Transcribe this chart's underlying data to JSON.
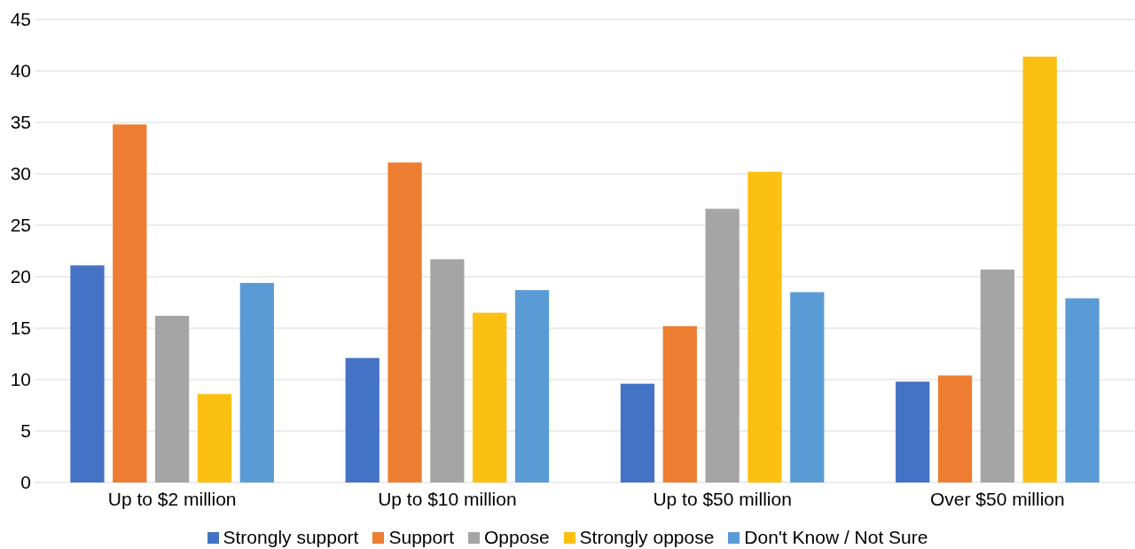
{
  "chart_data": {
    "type": "bar",
    "categories": [
      "Up to $2 million",
      "Up to $10 million",
      "Up to $50 million",
      "Over $50 million"
    ],
    "series": [
      {
        "name": "Strongly support",
        "color": "#4472c4",
        "values": [
          21.1,
          12.1,
          9.6,
          9.8
        ]
      },
      {
        "name": "Support",
        "color": "#ed7d31",
        "values": [
          34.8,
          31.1,
          15.2,
          10.4
        ]
      },
      {
        "name": "Oppose",
        "color": "#a5a5a5",
        "values": [
          16.2,
          21.7,
          26.6,
          20.7
        ]
      },
      {
        "name": "Strongly oppose",
        "color": "#fbc011",
        "values": [
          8.6,
          16.5,
          30.2,
          41.4
        ]
      },
      {
        "name": "Don't Know / Not Sure",
        "color": "#5b9bd5",
        "values": [
          19.4,
          18.7,
          18.5,
          17.9
        ]
      }
    ],
    "ylim": [
      0,
      45
    ],
    "yticks": [
      0,
      5,
      10,
      15,
      20,
      25,
      30,
      35,
      40,
      45
    ],
    "grid": "y",
    "legend": "bottom"
  }
}
